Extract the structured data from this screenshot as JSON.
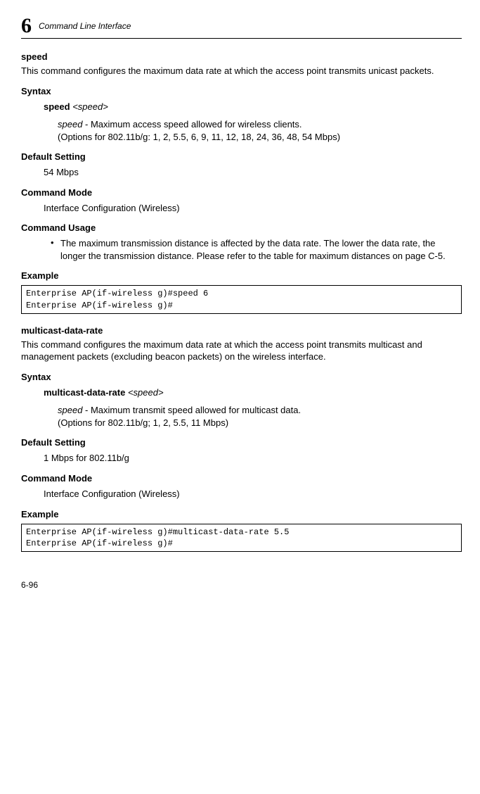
{
  "header": {
    "chapter_num": "6",
    "title": "Command Line Interface"
  },
  "speed": {
    "name": "speed",
    "desc": "This command configures the maximum data rate at which the access point transmits unicast packets.",
    "syntax_label": "Syntax",
    "syntax_cmd_bold": "speed",
    "syntax_cmd_arg": "<speed>",
    "param_name": "speed",
    "param_desc_l1": " - Maximum access speed allowed for wireless clients.",
    "param_desc_l2": "(Options for 802.11b/g: 1, 2, 5.5, 6, 9, 11, 12, 18, 24, 36, 48, 54 Mbps)",
    "default_label": "Default Setting",
    "default_val": "54 Mbps",
    "mode_label": "Command Mode",
    "mode_val": "Interface Configuration (Wireless)",
    "usage_label": "Command Usage",
    "usage_bullet": "The maximum transmission distance is affected by the data rate. The lower the data rate, the longer the transmission distance. Please refer to the table for maximum distances on page C-5.",
    "example_label": "Example",
    "example_code": "Enterprise AP(if-wireless g)#speed 6\nEnterprise AP(if-wireless g)#"
  },
  "multicast": {
    "name": "multicast-data-rate",
    "desc": "This command configures the maximum data rate at which the access point transmits multicast and management packets (excluding beacon packets) on the wireless interface.",
    "syntax_label": "Syntax",
    "syntax_cmd_bold": "multicast-data-rate",
    "syntax_cmd_arg": "<speed>",
    "param_name": "speed",
    "param_desc_l1": " - Maximum transmit speed allowed for multicast data.",
    "param_desc_l2": "(Options for 802.11b/g; 1, 2, 5.5, 11 Mbps)",
    "default_label": "Default Setting",
    "default_val": "1 Mbps for 802.11b/g",
    "mode_label": "Command Mode",
    "mode_val": "Interface Configuration (Wireless)",
    "example_label": "Example",
    "example_code": "Enterprise AP(if-wireless g)#multicast-data-rate 5.5\nEnterprise AP(if-wireless g)#"
  },
  "footer": {
    "page_num": "6-96"
  }
}
